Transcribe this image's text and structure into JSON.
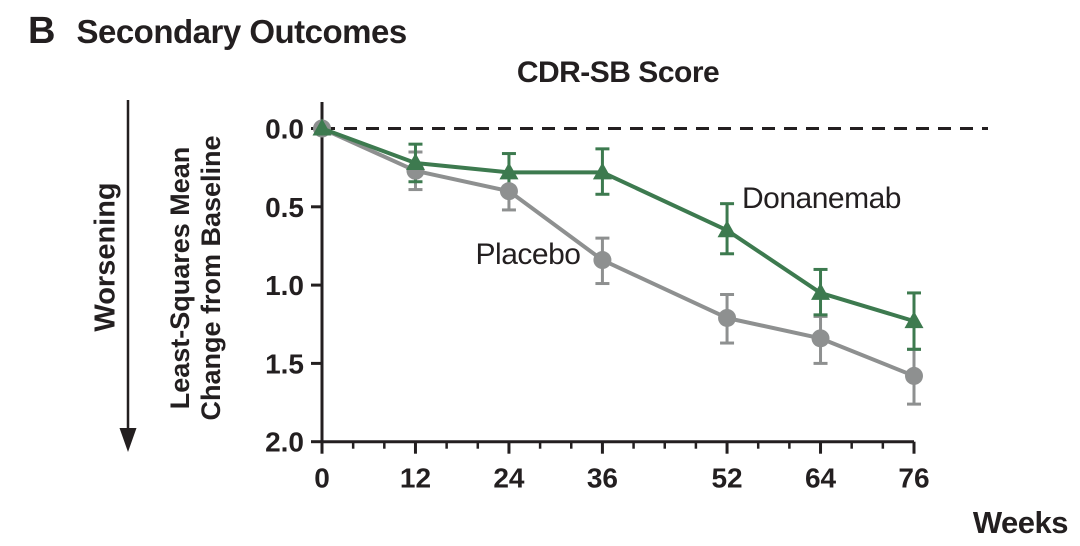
{
  "panel": {
    "label": "B",
    "title": "Secondary Outcomes"
  },
  "colors": {
    "donanemab_green": "#3d7a4f",
    "placebo_gray": "#8e9090",
    "ink_black": "#231f20",
    "background": "#ffffff"
  },
  "chart_data": {
    "type": "line",
    "title": "CDR-SB Score",
    "xlabel": "Weeks",
    "ylabel_lines": [
      "Least-Squares Mean",
      "Change from Baseline"
    ],
    "direction_annotation": "Worsening",
    "x": [
      0,
      12,
      24,
      36,
      52,
      64,
      76
    ],
    "x_major_ticks": [
      0,
      12,
      24,
      36,
      52,
      64,
      76
    ],
    "x_minor_tick_step": 4,
    "x_range": [
      0,
      76
    ],
    "y_ticks": [
      "0.0",
      "0.5",
      "1.0",
      "1.5",
      "2.0"
    ],
    "y_range": [
      0,
      2
    ],
    "y_inverted": true,
    "grid": false,
    "zero_line_dashed": true,
    "legend_position": "inline-labels",
    "series": [
      {
        "name": "Placebo",
        "marker": "circle",
        "color": "#8e9090",
        "values": [
          0.0,
          0.27,
          0.4,
          0.84,
          1.21,
          1.34,
          1.58
        ],
        "err_low": [
          null,
          0.15,
          0.28,
          0.7,
          1.06,
          1.2,
          1.41
        ],
        "err_high": [
          null,
          0.39,
          0.52,
          0.99,
          1.37,
          1.5,
          1.76
        ]
      },
      {
        "name": "Donanemab",
        "marker": "triangle",
        "color": "#3d7a4f",
        "values": [
          0.0,
          0.22,
          0.28,
          0.28,
          0.65,
          1.05,
          1.23
        ],
        "err_low": [
          null,
          0.1,
          0.16,
          0.13,
          0.48,
          0.9,
          1.05
        ],
        "err_high": [
          null,
          0.34,
          0.41,
          0.42,
          0.8,
          1.19,
          1.41
        ]
      }
    ]
  }
}
